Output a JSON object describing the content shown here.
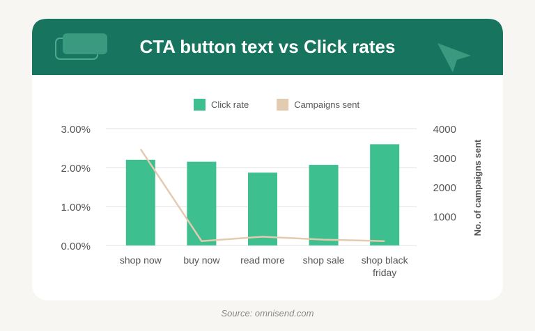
{
  "chart_data": {
    "type": "bar",
    "title": "CTA button text vs Click rates",
    "categories": [
      "shop now",
      "buy now",
      "read more",
      "shop sale",
      "shop black friday"
    ],
    "series": [
      {
        "name": "Click rate",
        "type": "bar",
        "color": "#3dbf90",
        "values": [
          2.2,
          2.15,
          1.87,
          2.07,
          2.6
        ]
      },
      {
        "name": "Campaigns sent",
        "type": "line",
        "axis": "y2",
        "color": "#e3cbb0",
        "values": [
          3300,
          150,
          300,
          200,
          150
        ]
      }
    ],
    "ylim": [
      0,
      3
    ],
    "yticks": [
      {
        "value": 0,
        "label": "0.00%"
      },
      {
        "value": 1,
        "label": "1.00%"
      },
      {
        "value": 2,
        "label": "2.00%"
      },
      {
        "value": 3,
        "label": "3.00%"
      }
    ],
    "y2lim": [
      0,
      4000
    ],
    "y2ticks": [
      1000,
      2000,
      3000,
      4000
    ],
    "y2label": "No. of campaigns sent",
    "grid": true,
    "legend": "top",
    "source": "Source: omnisend.com"
  }
}
